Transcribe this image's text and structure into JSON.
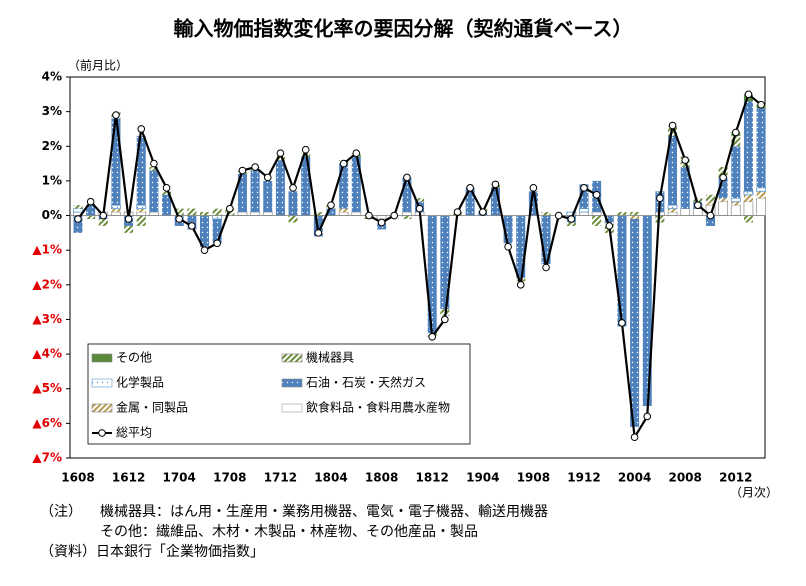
{
  "chart_data": {
    "type": "stacked-bar-line",
    "title": "輸入物価指数変化率の要因分解（契約通貨ベース）",
    "y_label": "（前月比）",
    "x_label": "（月次）",
    "categories": [
      "1608",
      null,
      null,
      null,
      "1612",
      null,
      null,
      null,
      "1704",
      null,
      null,
      null,
      "1708",
      null,
      null,
      null,
      "1712",
      null,
      null,
      null,
      "1804",
      null,
      null,
      null,
      "1808",
      null,
      null,
      null,
      "1812",
      null,
      null,
      null,
      "1904",
      null,
      null,
      null,
      "1908",
      null,
      null,
      null,
      "1912",
      null,
      null,
      null,
      "2004",
      null,
      null,
      null,
      "2008",
      null,
      null,
      null,
      "2012",
      null,
      null
    ],
    "ylim": [
      -7,
      4
    ],
    "yticks": [
      {
        "value": 4,
        "label": "4%"
      },
      {
        "value": 3,
        "label": "3%"
      },
      {
        "value": 2,
        "label": "2%"
      },
      {
        "value": 1,
        "label": "1%"
      },
      {
        "value": 0,
        "label": "0%"
      },
      {
        "value": -1,
        "label": "▲1%"
      },
      {
        "value": -2,
        "label": "▲2%"
      },
      {
        "value": -3,
        "label": "▲3%"
      },
      {
        "value": -4,
        "label": "▲4%"
      },
      {
        "value": -5,
        "label": "▲5%"
      },
      {
        "value": -6,
        "label": "▲6%"
      },
      {
        "value": -7,
        "label": "▲7%"
      }
    ],
    "negative_tick_color": "#e00000",
    "series": [
      {
        "name": "その他",
        "color": "#5a8a3a",
        "pattern": "solid",
        "values": [
          0,
          0,
          0,
          0,
          0,
          0,
          0,
          0,
          0,
          0,
          0,
          0,
          0,
          0,
          0,
          0,
          0,
          0,
          0,
          0,
          0,
          0,
          0,
          0,
          0,
          0,
          0,
          0,
          0,
          0,
          0,
          0,
          0,
          0,
          0,
          0,
          0,
          0,
          0,
          0,
          0,
          0,
          0,
          0,
          0,
          0,
          0,
          0,
          0,
          0,
          0,
          0,
          0.1,
          0.2,
          0.1
        ]
      },
      {
        "name": "機械器具",
        "color": "#6b8e3a",
        "pattern": "hatch",
        "values": [
          0.1,
          -0.1,
          -0.2,
          0.2,
          -0.2,
          -0.3,
          0.1,
          0.1,
          0.2,
          0.2,
          0.1,
          0.2,
          0.2,
          0.1,
          0.1,
          0.0,
          0.1,
          -0.2,
          0.1,
          0.1,
          0.1,
          0.1,
          0.1,
          -0.1,
          0.0,
          -0.1,
          -0.1,
          0.1,
          -0.1,
          -0.2,
          0.1,
          0.0,
          0.1,
          0.1,
          0.0,
          -0.1,
          0.0,
          0.1,
          0.0,
          -0.1,
          0.0,
          -0.3,
          -0.3,
          0.1,
          0.1,
          0.0,
          -0.2,
          0.3,
          0.3,
          0.1,
          0.2,
          0.3,
          0.3,
          -0.2,
          0.0
        ]
      },
      {
        "name": "化学製品",
        "color": "#5b9bd5",
        "pattern": "lightdots",
        "values": [
          0.1,
          0.0,
          0.0,
          0.1,
          0.0,
          0.1,
          0.0,
          0.0,
          0.0,
          0.0,
          0.0,
          -0.1,
          0.0,
          0.0,
          0.0,
          0.0,
          0.0,
          0.0,
          0.0,
          0.0,
          0.0,
          0.0,
          0.0,
          0.0,
          0.0,
          0.0,
          0.0,
          0.0,
          0.0,
          0.0,
          0.0,
          0.0,
          0.0,
          0.0,
          0.0,
          0.0,
          0.0,
          0.0,
          0.0,
          0.1,
          0.1,
          0.0,
          0.0,
          0.0,
          0.0,
          0.0,
          0.0,
          0.1,
          0.0,
          0.0,
          0.0,
          0.0,
          0.1,
          0.1,
          0.1
        ]
      },
      {
        "name": "石油・石炭・天然ガス",
        "color": "#4f81bd",
        "pattern": "dots",
        "values": [
          -0.5,
          0.3,
          -0.1,
          2.5,
          -0.3,
          2.0,
          1.2,
          0.6,
          -0.3,
          -0.4,
          -0.9,
          -0.7,
          0.0,
          1.1,
          1.2,
          0.9,
          1.6,
          0.7,
          1.7,
          -0.6,
          0.2,
          1.3,
          1.6,
          0.0,
          -0.2,
          0.0,
          1.0,
          0.3,
          -3.4,
          -2.7,
          0.0,
          0.8,
          0.1,
          0.8,
          -0.8,
          -1.8,
          0.7,
          -1.4,
          0.0,
          -0.2,
          0.7,
          0.9,
          -0.2,
          -3.2,
          -6.0,
          -5.5,
          0.6,
          2.0,
          1.2,
          0.2,
          -0.3,
          0.6,
          1.5,
          2.6,
          2.3
        ]
      },
      {
        "name": "金属・同製品",
        "color": "#b89a50",
        "pattern": "hatch",
        "values": [
          0.0,
          0.0,
          0.0,
          0.1,
          0.0,
          0.1,
          0.0,
          0.0,
          0.0,
          0.0,
          0.0,
          0.0,
          0.0,
          0.0,
          0.0,
          0.0,
          0.0,
          0.0,
          0.0,
          0.0,
          0.0,
          0.1,
          0.0,
          0.0,
          -0.1,
          0.0,
          0.0,
          0.0,
          0.0,
          0.0,
          0.0,
          0.0,
          0.0,
          0.0,
          0.0,
          0.0,
          0.0,
          0.0,
          0.0,
          0.0,
          0.0,
          0.0,
          0.0,
          0.0,
          -0.1,
          0.0,
          0.0,
          0.1,
          0.0,
          0.0,
          0.1,
          0.1,
          0.1,
          0.2,
          0.2
        ]
      },
      {
        "name": "飲食料品・食料用農水産物",
        "color": "#999999",
        "pattern": "plain",
        "values": [
          0.1,
          0.0,
          0.1,
          0.1,
          0.1,
          0.1,
          0.1,
          0.0,
          0.0,
          0.0,
          0.0,
          0.0,
          0.0,
          0.1,
          0.1,
          0.1,
          0.0,
          0.0,
          0.0,
          0.0,
          0.0,
          0.1,
          0.1,
          0.0,
          -0.1,
          0.0,
          0.1,
          0.1,
          0.0,
          0.0,
          0.0,
          0.0,
          0.0,
          0.0,
          0.0,
          0.0,
          0.0,
          0.0,
          0.0,
          0.0,
          0.1,
          0.1,
          0.0,
          0.0,
          0.0,
          0.0,
          0.1,
          0.1,
          0.2,
          0.2,
          0.3,
          0.4,
          0.3,
          0.4,
          0.5
        ]
      }
    ],
    "line": {
      "name": "総平均",
      "color": "#000000",
      "values": [
        -0.1,
        0.4,
        0.0,
        2.9,
        -0.1,
        2.5,
        1.5,
        0.8,
        -0.1,
        -0.3,
        -1.0,
        -0.8,
        0.2,
        1.3,
        1.4,
        1.1,
        1.8,
        0.8,
        1.9,
        -0.5,
        0.3,
        1.5,
        1.8,
        0.0,
        -0.2,
        0.0,
        1.1,
        0.2,
        -3.5,
        -3.0,
        0.1,
        0.8,
        0.1,
        0.9,
        -0.9,
        -2.0,
        0.8,
        -1.5,
        0.0,
        -0.1,
        0.8,
        0.6,
        -0.3,
        -3.1,
        -6.4,
        -5.8,
        0.5,
        2.6,
        1.6,
        0.3,
        0.0,
        1.1,
        2.4,
        3.5,
        3.2
      ]
    },
    "notes": [
      "（注）",
      "機械器具：はん用・生産用・業務用機器、電気・電子機器、輸送用機器",
      "その他：繊維品、木材・木製品・林産物、その他産品・製品",
      "（資料）日本銀行「企業物価指数」"
    ]
  }
}
